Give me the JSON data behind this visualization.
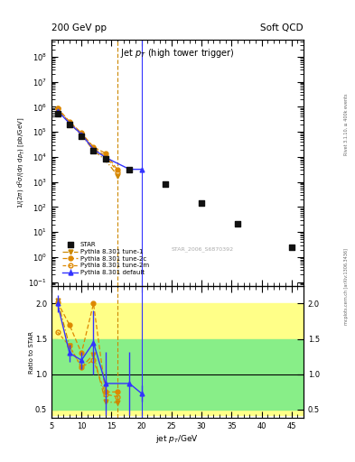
{
  "title_top": "200 GeV pp",
  "title_right": "Soft QCD",
  "plot_title": "Jet $p_T$ (high tower trigger)",
  "xlabel": "jet $p_T$/GeV",
  "ylabel_main": "1/(2$\\pi$) d$^2\\sigma$/(d$\\eta$ d$p_T$) [pb/GeV]",
  "ylabel_ratio": "Ratio to STAR",
  "watermark": "STAR_2006_S6870392",
  "right_label1": "Rivet 3.1.10, ≥ 400k events",
  "right_label2": "mcplots.cern.ch [arXiv:1306.3436]",
  "star_x": [
    6,
    8,
    10,
    12,
    14,
    18,
    24,
    30,
    36,
    45
  ],
  "star_y": [
    550000.0,
    190000.0,
    65000.0,
    18000.0,
    8500,
    3000,
    800,
    140,
    22,
    2.5
  ],
  "pythia_default_x": [
    6,
    8,
    10,
    12,
    14,
    18,
    20
  ],
  "pythia_default_y": [
    700000.0,
    220000.0,
    80000.0,
    20000.0,
    9500,
    3200,
    3200
  ],
  "pythia_default_yerr_lo": [
    30000.0,
    10000.0,
    4000.0,
    1000.0,
    400,
    150,
    150
  ],
  "pythia_default_yerr_hi": [
    30000.0,
    10000.0,
    4000.0,
    1000.0,
    400,
    150,
    150
  ],
  "pythia_tune1_x": [
    6,
    8,
    10,
    12,
    14,
    16
  ],
  "pythia_tune1_y": [
    800000.0,
    220000.0,
    75000.0,
    18000.0,
    7500,
    1800
  ],
  "pythia_tune2c_x": [
    6,
    8,
    10,
    12,
    14,
    16
  ],
  "pythia_tune2c_y": [
    900000.0,
    260000.0,
    90000.0,
    25000.0,
    14000.0,
    3000
  ],
  "pythia_tune2m_x": [
    6,
    8,
    10,
    12,
    14,
    16
  ],
  "pythia_tune2m_y": [
    850000.0,
    240000.0,
    85000.0,
    22000.0,
    11000.0,
    2500
  ],
  "ratio_default_x": [
    6,
    8,
    10,
    12,
    14,
    18,
    20
  ],
  "ratio_default_y": [
    2.0,
    1.3,
    1.2,
    1.45,
    0.87,
    0.87,
    0.73
  ],
  "ratio_default_yerr": [
    0.12,
    0.12,
    0.12,
    0.45,
    0.45,
    0.45,
    0.12
  ],
  "ratio_tune1_x": [
    6,
    8,
    10,
    12,
    14,
    16
  ],
  "ratio_tune1_y": [
    2.05,
    1.4,
    1.1,
    1.28,
    0.61,
    0.6
  ],
  "ratio_tune2c_x": [
    6,
    8,
    10,
    12,
    14,
    16
  ],
  "ratio_tune2c_y": [
    2.02,
    1.7,
    1.3,
    2.0,
    0.75,
    0.75
  ],
  "ratio_tune2m_x": [
    6,
    8,
    10,
    12,
    14,
    16
  ],
  "ratio_tune2m_y": [
    1.6,
    1.4,
    1.1,
    1.2,
    0.72,
    0.68
  ],
  "color_default": "#3333ff",
  "color_tune1": "#cc8800",
  "color_tune2c": "#dd8800",
  "color_tune2m": "#dd8800",
  "color_star": "#111111",
  "band_yellow_color": "#ffff88",
  "band_green_color": "#88ee88",
  "band_x": [
    5,
    8,
    10,
    12,
    14,
    16,
    18,
    20,
    22,
    25,
    30,
    38,
    46
  ],
  "band_yellow_lo": [
    0.42,
    0.42,
    0.42,
    0.42,
    0.42,
    0.42,
    0.42,
    0.42,
    0.42,
    0.42,
    0.42,
    0.42,
    0.42
  ],
  "band_yellow_hi": [
    2.0,
    2.0,
    2.0,
    2.0,
    2.0,
    2.0,
    2.0,
    2.0,
    2.0,
    2.0,
    2.0,
    2.0,
    2.0
  ],
  "band_green_lo": [
    0.5,
    0.5,
    0.5,
    0.5,
    0.5,
    0.7,
    0.7,
    0.7,
    0.7,
    0.7,
    0.7,
    0.7,
    0.7
  ],
  "band_green_hi": [
    1.5,
    1.5,
    1.5,
    1.5,
    1.5,
    1.5,
    1.5,
    1.5,
    1.5,
    1.5,
    1.5,
    1.5,
    1.5
  ],
  "xlim": [
    5,
    47
  ],
  "ylim_main": [
    0.07,
    500000000.0
  ],
  "ylim_ratio": [
    0.38,
    2.25
  ],
  "ratio_yticks": [
    0.5,
    1.0,
    1.5,
    2.0
  ],
  "vline_orange_x": 16.0,
  "vline_blue_x": 20.0
}
